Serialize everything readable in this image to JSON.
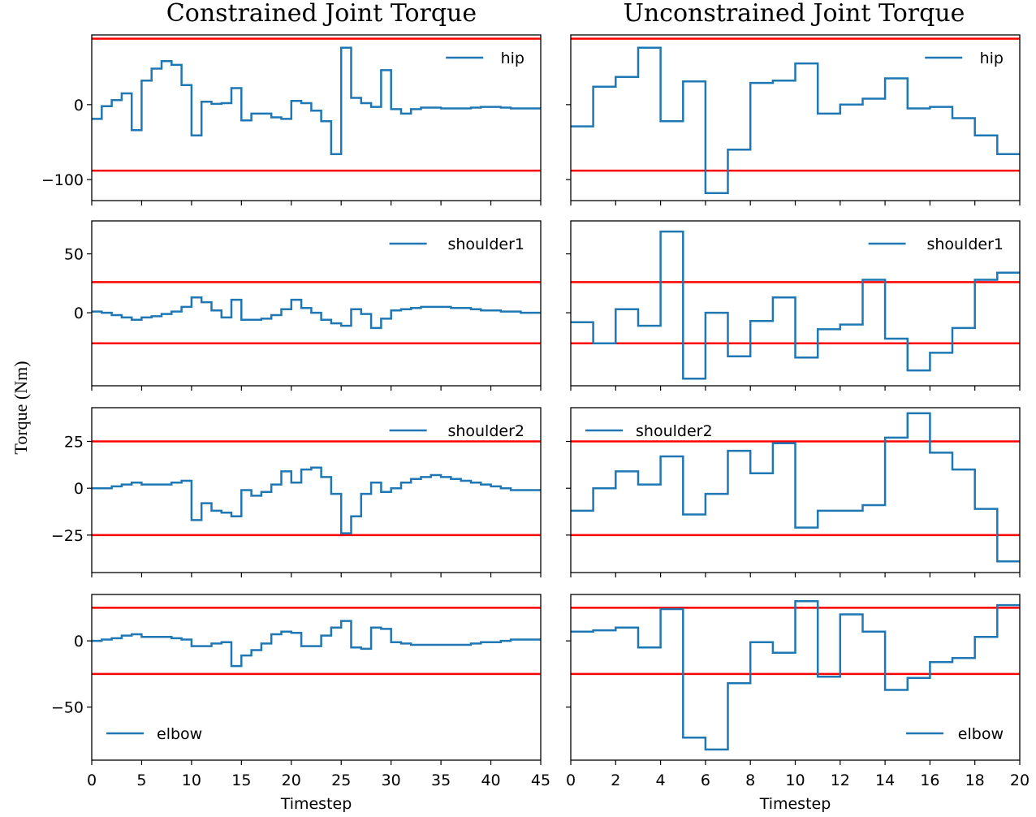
{
  "figure": {
    "ylabel": "Torque (Nm)",
    "colors": {
      "series": "#1f77b4",
      "limit": "#ff0000",
      "axis": "#000000"
    }
  },
  "columns": [
    {
      "title": "Constrained Joint Torque",
      "xlabel": "Timestep",
      "xlim": [
        0,
        45
      ],
      "xticks": [
        0,
        5,
        10,
        15,
        20,
        25,
        30,
        35,
        40,
        45
      ]
    },
    {
      "title": "Unconstrained Joint Torque",
      "xlabel": "Timestep",
      "xlim": [
        0,
        20
      ],
      "xticks": [
        0,
        2,
        4,
        6,
        8,
        10,
        12,
        14,
        16,
        18,
        20
      ]
    }
  ],
  "rows": [
    {
      "joint": "hip",
      "ylim": [
        -128,
        93
      ],
      "yticks": [
        0,
        -100
      ],
      "ytick_labels": [
        "0",
        "−100"
      ],
      "limits": [
        88,
        -88
      ]
    },
    {
      "joint": "shoulder1",
      "ylim": [
        -62,
        78
      ],
      "yticks": [
        50,
        0
      ],
      "ytick_labels": [
        "50",
        "0"
      ],
      "limits": [
        26,
        -26
      ]
    },
    {
      "joint": "shoulder2",
      "ylim": [
        -45,
        43
      ],
      "yticks": [
        25,
        0,
        -25
      ],
      "ytick_labels": [
        "25",
        "0",
        "−25"
      ],
      "limits": [
        25,
        -25
      ]
    },
    {
      "joint": "elbow",
      "ylim": [
        -90,
        35
      ],
      "yticks": [
        0,
        -50
      ],
      "ytick_labels": [
        "0",
        "−50"
      ],
      "limits": [
        25,
        -25
      ]
    }
  ],
  "chart_data": [
    {
      "type": "line",
      "drawstyle": "steps-post",
      "title": "Constrained Joint Torque",
      "series_name": "hip",
      "legend_position": "top-right",
      "xlabel": "Timestep",
      "ylabel": "Torque (Nm)",
      "x": [
        0,
        1,
        2,
        3,
        4,
        5,
        6,
        7,
        8,
        9,
        10,
        11,
        12,
        13,
        14,
        15,
        16,
        17,
        18,
        19,
        20,
        21,
        22,
        23,
        24,
        25,
        26,
        27,
        28,
        29,
        30,
        31,
        32,
        33,
        34,
        35,
        36,
        37,
        38,
        39,
        40,
        41,
        42,
        43,
        44,
        45
      ],
      "values": [
        -19,
        -2,
        6,
        15,
        -34,
        32,
        48,
        58,
        53,
        26,
        -41,
        4,
        1,
        2,
        22,
        -21,
        -12,
        -12,
        -17,
        -19,
        5,
        2,
        -8,
        -22,
        -66,
        76,
        9,
        2,
        -3,
        46,
        -6,
        -12,
        -6,
        -4,
        -4,
        -5,
        -5,
        -5,
        -4,
        -3,
        -3,
        -4,
        -5,
        -5,
        -5,
        -5
      ],
      "limits": [
        88,
        -88
      ],
      "xlim": [
        0,
        45
      ],
      "ylim": [
        -128,
        93
      ]
    },
    {
      "type": "line",
      "drawstyle": "steps-post",
      "title": "Constrained Joint Torque",
      "series_name": "shoulder1",
      "legend_position": "top-right",
      "x": [
        0,
        1,
        2,
        3,
        4,
        5,
        6,
        7,
        8,
        9,
        10,
        11,
        12,
        13,
        14,
        15,
        16,
        17,
        18,
        19,
        20,
        21,
        22,
        23,
        24,
        25,
        26,
        27,
        28,
        29,
        30,
        31,
        32,
        33,
        34,
        35,
        36,
        37,
        38,
        39,
        40,
        41,
        42,
        43,
        44,
        45
      ],
      "values": [
        1,
        0,
        -2,
        -4,
        -6,
        -4,
        -3,
        -1,
        1,
        5,
        13,
        9,
        2,
        -4,
        11,
        -6,
        -6,
        -5,
        -2,
        3,
        11,
        4,
        0,
        -6,
        -9,
        -11,
        3,
        -1,
        -13,
        -5,
        2,
        3,
        4,
        5,
        5,
        5,
        4,
        4,
        3,
        2,
        2,
        1,
        1,
        0,
        0,
        0
      ],
      "limits": [
        26,
        -26
      ],
      "xlim": [
        0,
        45
      ],
      "ylim": [
        -62,
        78
      ]
    },
    {
      "type": "line",
      "drawstyle": "steps-post",
      "title": "Constrained Joint Torque",
      "series_name": "shoulder2",
      "legend_position": "top-right",
      "x": [
        0,
        1,
        2,
        3,
        4,
        5,
        6,
        7,
        8,
        9,
        10,
        11,
        12,
        13,
        14,
        15,
        16,
        17,
        18,
        19,
        20,
        21,
        22,
        23,
        24,
        25,
        26,
        27,
        28,
        29,
        30,
        31,
        32,
        33,
        34,
        35,
        36,
        37,
        38,
        39,
        40,
        41,
        42,
        43,
        44,
        45
      ],
      "values": [
        0,
        0,
        1,
        2,
        3,
        2,
        2,
        2,
        3,
        4,
        -17,
        -8,
        -12,
        -13,
        -15,
        -1,
        -4,
        -2,
        2,
        9,
        3,
        10,
        11,
        6,
        -3,
        -24,
        -15,
        -3,
        3,
        -2,
        0,
        3,
        5,
        6,
        7,
        6,
        5,
        4,
        3,
        2,
        1,
        0,
        -1,
        -1,
        -1,
        -1
      ],
      "limits": [
        25,
        -25
      ],
      "xlim": [
        0,
        45
      ],
      "ylim": [
        -45,
        43
      ]
    },
    {
      "type": "line",
      "drawstyle": "steps-post",
      "title": "Constrained Joint Torque",
      "series_name": "elbow",
      "legend_position": "bottom-left",
      "x": [
        0,
        1,
        2,
        3,
        4,
        5,
        6,
        7,
        8,
        9,
        10,
        11,
        12,
        13,
        14,
        15,
        16,
        17,
        18,
        19,
        20,
        21,
        22,
        23,
        24,
        25,
        26,
        27,
        28,
        29,
        30,
        31,
        32,
        33,
        34,
        35,
        36,
        37,
        38,
        39,
        40,
        41,
        42,
        43,
        44,
        45
      ],
      "values": [
        0,
        1,
        2,
        4,
        5,
        3,
        3,
        3,
        2,
        1,
        -4,
        -4,
        -2,
        -1,
        -19,
        -11,
        -7,
        -2,
        5,
        7,
        6,
        -4,
        -4,
        4,
        10,
        15,
        -5,
        -6,
        10,
        9,
        -1,
        -2,
        -3,
        -3,
        -3,
        -3,
        -3,
        -3,
        -2,
        -1,
        -1,
        0,
        1,
        1,
        1,
        1
      ],
      "limits": [
        25,
        -25
      ],
      "xlim": [
        0,
        45
      ],
      "ylim": [
        -90,
        35
      ]
    },
    {
      "type": "line",
      "drawstyle": "steps-post",
      "title": "Unconstrained Joint Torque",
      "series_name": "hip",
      "legend_position": "top-right",
      "x": [
        0,
        1,
        2,
        3,
        4,
        5,
        6,
        7,
        8,
        9,
        10,
        11,
        12,
        13,
        14,
        15,
        16,
        17,
        18,
        19,
        20
      ],
      "values": [
        -29,
        24,
        37,
        76,
        -22,
        31,
        -118,
        -60,
        29,
        32,
        55,
        -12,
        0,
        8,
        35,
        -5,
        -3,
        -18,
        -41,
        -66,
        -66
      ],
      "limits": [
        88,
        -88
      ],
      "xlim": [
        0,
        20
      ],
      "ylim": [
        -128,
        93
      ]
    },
    {
      "type": "line",
      "drawstyle": "steps-post",
      "title": "Unconstrained Joint Torque",
      "series_name": "shoulder1",
      "legend_position": "top-right",
      "x": [
        0,
        1,
        2,
        3,
        4,
        5,
        6,
        7,
        8,
        9,
        10,
        11,
        12,
        13,
        14,
        15,
        16,
        17,
        18,
        19,
        20
      ],
      "values": [
        -8,
        -26,
        3,
        -11,
        69,
        -56,
        0,
        -37,
        -7,
        13,
        -38,
        -14,
        -10,
        28,
        -22,
        -49,
        -34,
        -13,
        28,
        34,
        34
      ],
      "limits": [
        26,
        -26
      ],
      "xlim": [
        0,
        20
      ],
      "ylim": [
        -62,
        78
      ]
    },
    {
      "type": "line",
      "drawstyle": "steps-post",
      "title": "Unconstrained Joint Torque",
      "series_name": "shoulder2",
      "legend_position": "top-left",
      "x": [
        0,
        1,
        2,
        3,
        4,
        5,
        6,
        7,
        8,
        9,
        10,
        11,
        12,
        13,
        14,
        15,
        16,
        17,
        18,
        19,
        20
      ],
      "values": [
        -12,
        0,
        9,
        2,
        17,
        -14,
        -3,
        20,
        8,
        24,
        -21,
        -12,
        -12,
        -9,
        27,
        40,
        19,
        10,
        -11,
        -39,
        -39
      ],
      "limits": [
        25,
        -25
      ],
      "xlim": [
        0,
        20
      ],
      "ylim": [
        -45,
        43
      ]
    },
    {
      "type": "line",
      "drawstyle": "steps-post",
      "title": "Unconstrained Joint Torque",
      "series_name": "elbow",
      "legend_position": "bottom-right",
      "x": [
        0,
        1,
        2,
        3,
        4,
        5,
        6,
        7,
        8,
        9,
        10,
        11,
        12,
        13,
        14,
        15,
        16,
        17,
        18,
        19,
        20
      ],
      "values": [
        7,
        8,
        10,
        -5,
        24,
        -73,
        -82,
        -32,
        -1,
        -9,
        30,
        -27,
        20,
        7,
        -37,
        -28,
        -16,
        -13,
        3,
        27,
        27
      ],
      "limits": [
        25,
        -25
      ],
      "xlim": [
        0,
        20
      ],
      "ylim": [
        -90,
        35
      ]
    }
  ]
}
